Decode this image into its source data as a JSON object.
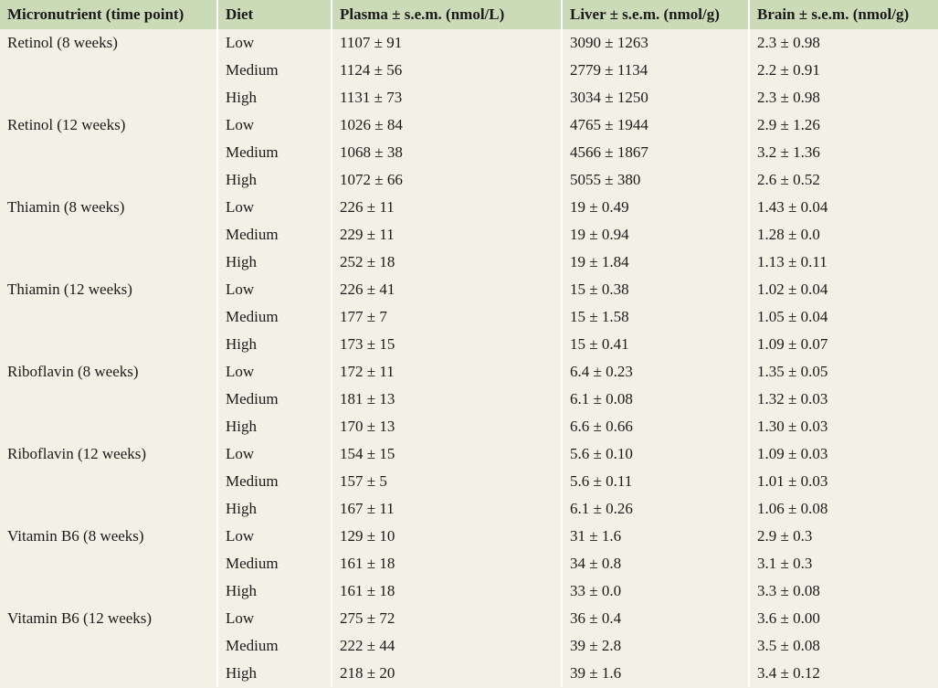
{
  "table": {
    "header": [
      "Micronutrient (time point)",
      "Diet",
      "Plasma ± s.e.m. (nmol/L)",
      "Liver ± s.e.m. (nmol/g)",
      "Brain ± s.e.m. (nmol/g)"
    ],
    "groups": [
      {
        "label": "Retinol (8 weeks)",
        "rows": [
          [
            "Low",
            "1107 ± 91",
            "3090 ± 1263",
            "2.3 ± 0.98"
          ],
          [
            "Medium",
            "1124 ± 56",
            "2779 ± 1134",
            "2.2 ± 0.91"
          ],
          [
            "High",
            "1131 ± 73",
            "3034 ± 1250",
            "2.3 ± 0.98"
          ]
        ]
      },
      {
        "label": "Retinol (12 weeks)",
        "rows": [
          [
            "Low",
            "1026 ± 84",
            "4765 ± 1944",
            "2.9 ± 1.26"
          ],
          [
            "Medium",
            "1068 ± 38",
            "4566 ± 1867",
            "3.2 ± 1.36"
          ],
          [
            "High",
            "1072 ± 66",
            "5055 ± 380",
            "2.6 ± 0.52"
          ]
        ]
      },
      {
        "label": "Thiamin (8 weeks)",
        "rows": [
          [
            "Low",
            "226 ± 11",
            "19 ± 0.49",
            "1.43 ± 0.04"
          ],
          [
            "Medium",
            "229 ± 11",
            "19 ± 0.94",
            "1.28 ± 0.0"
          ],
          [
            "High",
            "252 ± 18",
            "19 ± 1.84",
            "1.13 ± 0.11"
          ]
        ]
      },
      {
        "label": "Thiamin (12 weeks)",
        "rows": [
          [
            "Low",
            "226 ± 41",
            "15 ± 0.38",
            "1.02 ± 0.04"
          ],
          [
            "Medium",
            "177 ± 7",
            "15 ± 1.58",
            "1.05 ± 0.04"
          ],
          [
            "High",
            "173 ± 15",
            "15 ± 0.41",
            "1.09 ± 0.07"
          ]
        ]
      },
      {
        "label": "Riboflavin (8 weeks)",
        "rows": [
          [
            "Low",
            "172 ± 11",
            "6.4 ± 0.23",
            "1.35 ± 0.05"
          ],
          [
            "Medium",
            "181 ± 13",
            "6.1 ± 0.08",
            "1.32 ± 0.03"
          ],
          [
            "High",
            "170 ± 13",
            "6.6 ± 0.66",
            "1.30 ± 0.03"
          ]
        ]
      },
      {
        "label": "Riboflavin (12 weeks)",
        "rows": [
          [
            "Low",
            "154 ± 15",
            "5.6 ± 0.10",
            "1.09 ± 0.03"
          ],
          [
            "Medium",
            "157 ± 5",
            "5.6 ± 0.11",
            "1.01 ± 0.03"
          ],
          [
            "High",
            "167 ± 11",
            "6.1 ± 0.26",
            "1.06 ± 0.08"
          ]
        ]
      },
      {
        "label": "Vitamin B6 (8 weeks)",
        "rows": [
          [
            "Low",
            "129 ± 10",
            "31 ± 1.6",
            "2.9 ± 0.3"
          ],
          [
            "Medium",
            "161 ± 18",
            "34 ± 0.8",
            "3.1 ± 0.3"
          ],
          [
            "High",
            "161 ± 18",
            "33 ± 0.0",
            "3.3 ± 0.08"
          ]
        ]
      },
      {
        "label": "Vitamin B6 (12 weeks)",
        "rows": [
          [
            "Low",
            "275 ± 72",
            "36 ± 0.4",
            "3.6 ± 0.00"
          ],
          [
            "Medium",
            "222 ± 44",
            "39 ± 2.8",
            "3.5 ± 0.08"
          ],
          [
            "High",
            "218 ± 20",
            "39 ± 1.6",
            "3.4 ± 0.12"
          ]
        ]
      }
    ]
  }
}
